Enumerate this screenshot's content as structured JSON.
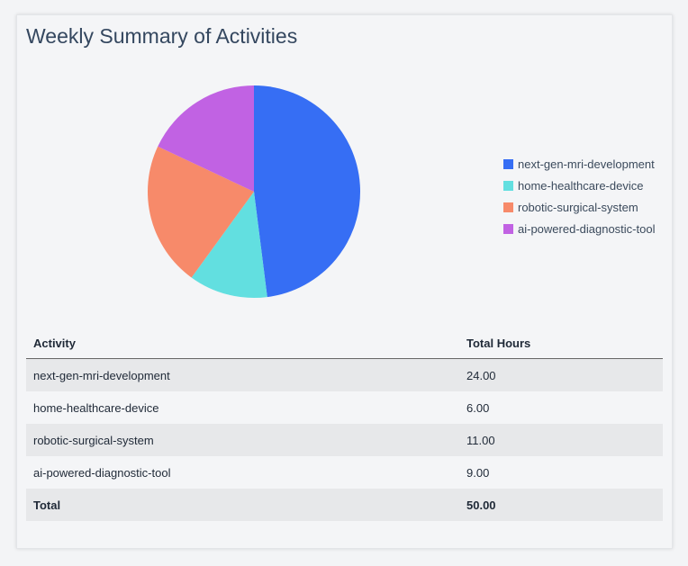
{
  "title": "Weekly Summary of Activities",
  "chart_data": {
    "type": "pie",
    "categories": [
      "next-gen-mri-development",
      "home-healthcare-device",
      "robotic-surgical-system",
      "ai-powered-diagnostic-tool"
    ],
    "values": [
      24,
      6,
      11,
      9
    ],
    "colors": [
      "#366ef4",
      "#62dfe0",
      "#f78a6a",
      "#c162e3"
    ],
    "legend_position": "right"
  },
  "table": {
    "headers": [
      "Activity",
      "Total Hours"
    ],
    "rows": [
      [
        "next-gen-mri-development",
        "24.00"
      ],
      [
        "home-healthcare-device",
        "6.00"
      ],
      [
        "robotic-surgical-system",
        "11.00"
      ],
      [
        "ai-powered-diagnostic-tool",
        "9.00"
      ]
    ],
    "total": [
      "Total",
      "50.00"
    ]
  }
}
